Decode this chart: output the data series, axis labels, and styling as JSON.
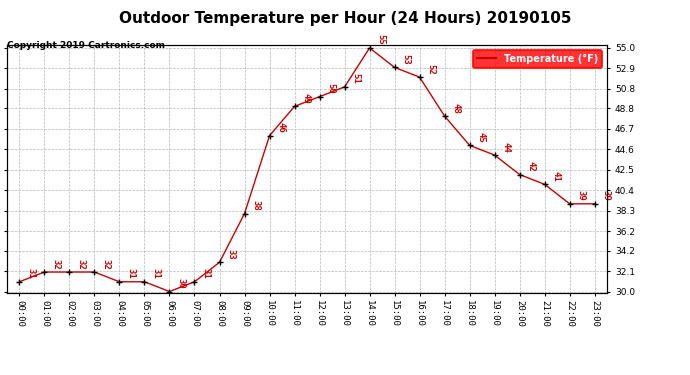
{
  "title": "Outdoor Temperature per Hour (24 Hours) 20190105",
  "copyright": "Copyright 2019 Cartronics.com",
  "legend_label": "Temperature (°F)",
  "hours": [
    "00:00",
    "01:00",
    "02:00",
    "03:00",
    "04:00",
    "05:00",
    "06:00",
    "07:00",
    "08:00",
    "09:00",
    "10:00",
    "11:00",
    "12:00",
    "13:00",
    "14:00",
    "15:00",
    "16:00",
    "17:00",
    "18:00",
    "19:00",
    "20:00",
    "21:00",
    "22:00",
    "23:00"
  ],
  "temperatures": [
    31,
    32,
    32,
    32,
    31,
    31,
    30,
    31,
    33,
    38,
    46,
    49,
    50,
    51,
    55,
    53,
    52,
    48,
    45,
    44,
    42,
    41,
    39,
    39
  ],
  "ylim_min": 30.0,
  "ylim_max": 55.0,
  "line_color": "#cc0000",
  "marker_color": "#000000",
  "label_color": "#cc0000",
  "bg_color": "#ffffff",
  "grid_color": "#b0b0b0",
  "title_fontsize": 11,
  "copyright_fontsize": 6.5,
  "tick_fontsize": 6.5,
  "data_label_fontsize": 6.5,
  "legend_fontsize": 7,
  "yticks": [
    30.0,
    32.1,
    34.2,
    36.2,
    38.3,
    40.4,
    42.5,
    44.6,
    46.7,
    48.8,
    50.8,
    52.9,
    55.0
  ]
}
